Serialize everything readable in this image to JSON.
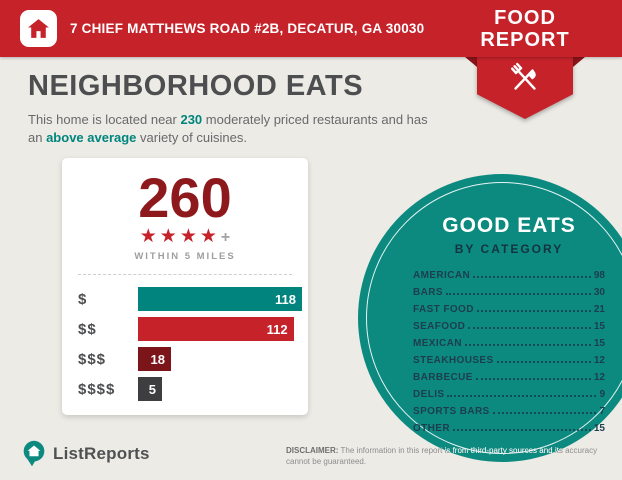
{
  "colors": {
    "header_red": "#c5222a",
    "dark_red": "#8e191d",
    "maroon": "#7b151a",
    "teal": "#00847d",
    "circle_teal": "#0c8a80",
    "charcoal": "#3e3e40",
    "navy": "#1c3e4d"
  },
  "header": {
    "address": "7 CHIEF MATTHEWS ROAD #2B, DECATUR, GA 30030",
    "badge": {
      "line1": "FOOD",
      "line2": "REPORT"
    }
  },
  "main": {
    "title": "NEIGHBORHOOD EATS",
    "intro": {
      "part1": "This home is located near ",
      "count": "230",
      "part2": " moderately priced restaurants and has an ",
      "highlight": "above average",
      "part3": " variety of cuisines."
    }
  },
  "chart_data": [
    {
      "type": "bar",
      "orientation": "horizontal",
      "total": "260",
      "stars": "★★★★",
      "stars_suffix": "+",
      "note": "WITHIN 5 MILES",
      "categories": [
        "$",
        "$$",
        "$$$",
        "$$$$"
      ],
      "values": [
        118,
        112,
        18,
        5
      ],
      "colors": [
        "#00847d",
        "#c5222a",
        "#7b151a",
        "#3e3e40"
      ],
      "value_labels": "inside-end"
    },
    {
      "type": "table",
      "title": "GOOD EATS",
      "subtitle": "BY CATEGORY",
      "categories": [
        "AMERICAN",
        "BARS",
        "FAST FOOD",
        "SEAFOOD",
        "MEXICAN",
        "STEAKHOUSES",
        "BARBECUE",
        "DELIS",
        "SPORTS BARS",
        "OTHER"
      ],
      "values": [
        98,
        30,
        21,
        15,
        15,
        12,
        12,
        9,
        7,
        15
      ]
    }
  ],
  "footer": {
    "brand": "ListReports",
    "disclaimer_label": "DISCLAIMER:",
    "disclaimer_text": " The information in this report is from third-party sources and its accuracy cannot be guaranteed."
  }
}
